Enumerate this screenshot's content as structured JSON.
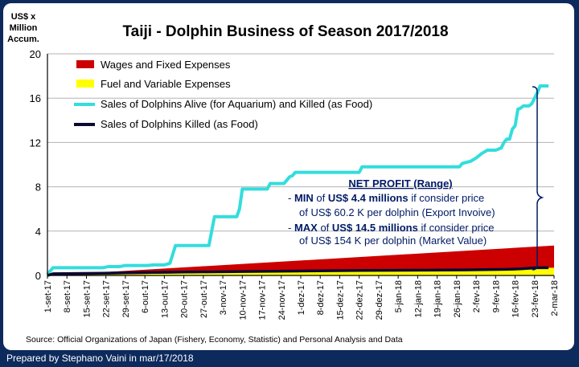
{
  "chart_data": {
    "type": "area",
    "title": "Taiji - Dolphin Business of Season 2017/2018",
    "ylabel_lines": [
      "US$ x",
      "Million",
      "Accum."
    ],
    "xlabel": "",
    "ylim": [
      0,
      20
    ],
    "yticks": [
      0,
      4,
      8,
      12,
      16,
      20
    ],
    "x_tick_labels": [
      "1-set-17",
      "8-set-17",
      "15-set-17",
      "22-set-17",
      "29-set-17",
      "6-out-17",
      "13-out-17",
      "20-out-17",
      "27-out-17",
      "3-nov-17",
      "10-nov-17",
      "17-nov-17",
      "24-nov-17",
      "1-dez-17",
      "8-dez-17",
      "15-dez-17",
      "22-dez-17",
      "29-dez-17",
      "5-jan-18",
      "12-jan-18",
      "19-jan-18",
      "26-jan-18",
      "2-fev-18",
      "9-fev-18",
      "16-fev-18",
      "23-fev-18",
      "2-mar-18"
    ],
    "x_domain_days": [
      0,
      182
    ],
    "series": [
      {
        "name": "Wages and Fixed Expenses",
        "kind": "area",
        "color": "#cc0000",
        "points": [
          [
            0,
            0.0
          ],
          [
            182,
            2.7
          ]
        ]
      },
      {
        "name": "Fuel and Variable Expenses",
        "kind": "area",
        "color": "#ffff00",
        "points": [
          [
            0,
            0.0
          ],
          [
            182,
            0.7
          ]
        ]
      },
      {
        "name": "Sales of Dolphins Alive (for Aquarium) and Killed (as Food)",
        "kind": "line",
        "color": "#33dddd",
        "points": [
          [
            0,
            0.1
          ],
          [
            2,
            0.7
          ],
          [
            20,
            0.7
          ],
          [
            22,
            0.8
          ],
          [
            26,
            0.8
          ],
          [
            28,
            0.9
          ],
          [
            36,
            0.9
          ],
          [
            38,
            0.95
          ],
          [
            42,
            0.95
          ],
          [
            44,
            1.1
          ],
          [
            46,
            2.7
          ],
          [
            58,
            2.7
          ],
          [
            60,
            5.3
          ],
          [
            63,
            5.3
          ],
          [
            64,
            5.3
          ],
          [
            68,
            5.3
          ],
          [
            69,
            6.0
          ],
          [
            70,
            7.8
          ],
          [
            79,
            7.8
          ],
          [
            80,
            8.3
          ],
          [
            85,
            8.3
          ],
          [
            87,
            8.9
          ],
          [
            88,
            9.0
          ],
          [
            89,
            9.3
          ],
          [
            112,
            9.3
          ],
          [
            113,
            9.8
          ],
          [
            134,
            9.8
          ],
          [
            148,
            9.8
          ],
          [
            149,
            10.1
          ],
          [
            152,
            10.3
          ],
          [
            154,
            10.6
          ],
          [
            156,
            11.0
          ],
          [
            158,
            11.3
          ],
          [
            161,
            11.3
          ],
          [
            163,
            11.5
          ],
          [
            164,
            12.0
          ],
          [
            165,
            12.3
          ],
          [
            166,
            12.3
          ],
          [
            167,
            13.2
          ],
          [
            168,
            13.5
          ],
          [
            169,
            15.0
          ],
          [
            170,
            15.1
          ],
          [
            171,
            15.3
          ],
          [
            173,
            15.3
          ],
          [
            174,
            15.5
          ],
          [
            176,
            16.5
          ],
          [
            177,
            17.1
          ],
          [
            180,
            17.1
          ]
        ]
      },
      {
        "name": "Sales of Dolphins Killed (as Food)",
        "kind": "line",
        "color": "#0a0a33",
        "points": [
          [
            0,
            0.0
          ],
          [
            2,
            0.15
          ],
          [
            20,
            0.2
          ],
          [
            30,
            0.25
          ],
          [
            46,
            0.3
          ],
          [
            70,
            0.35
          ],
          [
            90,
            0.4
          ],
          [
            113,
            0.45
          ],
          [
            150,
            0.5
          ],
          [
            165,
            0.55
          ],
          [
            170,
            0.6
          ],
          [
            176,
            0.7
          ],
          [
            180,
            0.7
          ]
        ]
      }
    ],
    "annotation": {
      "title": "NET PROFIT (Range)",
      "min_prefix": "- ",
      "min_bold": "MIN",
      "min_mid": " of ",
      "min_bold2": "US$ 4.4 millions",
      "min_rest": " if consider price",
      "min_line2": "of US$ 60.2 K per dolphin (Export Invoive)",
      "max_prefix": "- ",
      "max_bold": "MAX",
      "max_mid": " of ",
      "max_bold2": "US$ 14.5 millions",
      "max_rest": " if consider price",
      "max_line2": "of US$ 154 K per dolphin (Market Value)"
    },
    "source": "Source: Official Organizations of Japan (Fishery, Economy, Statistic) and Personal Analysis and Data"
  },
  "footer": "Prepared by Stephano Vaini in mar/17/2018"
}
